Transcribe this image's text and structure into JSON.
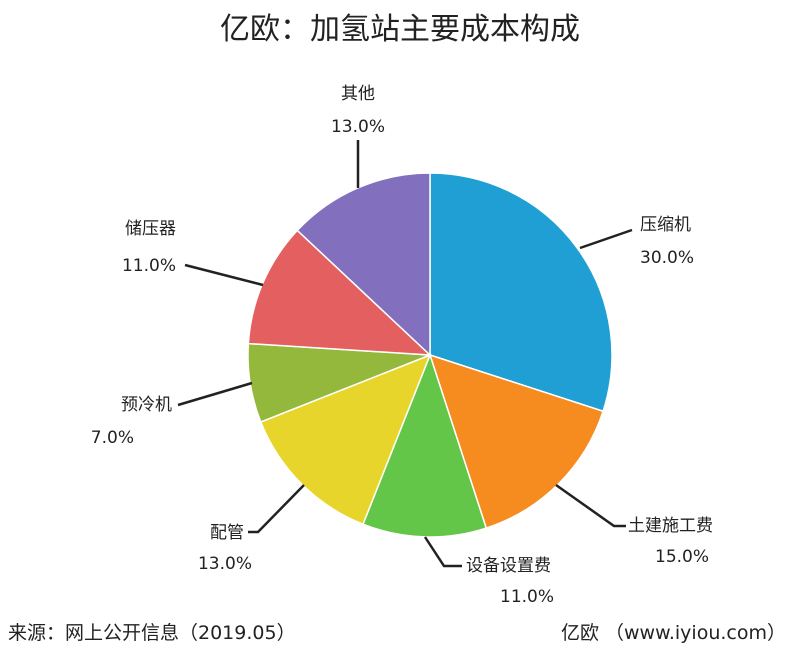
{
  "chart_data": {
    "type": "pie",
    "title": "亿欧：加氢站主要成本构成",
    "slices": [
      {
        "label": "压缩机",
        "value": 30.0,
        "percent_text": "30.0%",
        "color": "#1f9fd3"
      },
      {
        "label": "土建施工费",
        "value": 15.0,
        "percent_text": "15.0%",
        "color": "#f68b1f"
      },
      {
        "label": "设备设置费",
        "value": 11.0,
        "percent_text": "11.0%",
        "color": "#63c648"
      },
      {
        "label": "配管",
        "value": 13.0,
        "percent_text": "13.0%",
        "color": "#e7d52c"
      },
      {
        "label": "预冷机",
        "value": 7.0,
        "percent_text": "7.0%",
        "color": "#93b83b"
      },
      {
        "label": "储压器",
        "value": 11.0,
        "percent_text": "11.0%",
        "color": "#e46060"
      },
      {
        "label": "其他",
        "value": 13.0,
        "percent_text": "13.0%",
        "color": "#8270bf"
      }
    ]
  },
  "footer": {
    "source": "来源：网上公开信息（2019.05）",
    "brand": "亿欧 （www.iyiou.com）"
  }
}
